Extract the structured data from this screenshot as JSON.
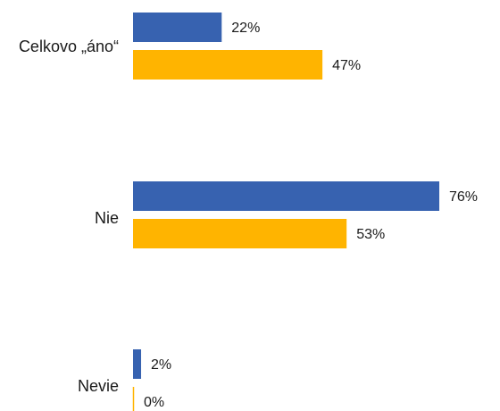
{
  "chart_data": {
    "type": "bar",
    "orientation": "horizontal",
    "categories": [
      "Celkovo „áno“",
      "Nie",
      "Nevie"
    ],
    "series": [
      {
        "values": [
          22,
          76,
          2
        ],
        "color": "#3762B0",
        "labels": [
          "22%",
          "76%",
          "2%"
        ]
      },
      {
        "values": [
          47,
          53,
          0
        ],
        "color": "#FFB400",
        "labels": [
          "47%",
          "53%",
          "0%"
        ]
      }
    ],
    "value_unit": "%",
    "xlim": [
      0,
      76
    ],
    "grid": false,
    "legend": "none"
  }
}
